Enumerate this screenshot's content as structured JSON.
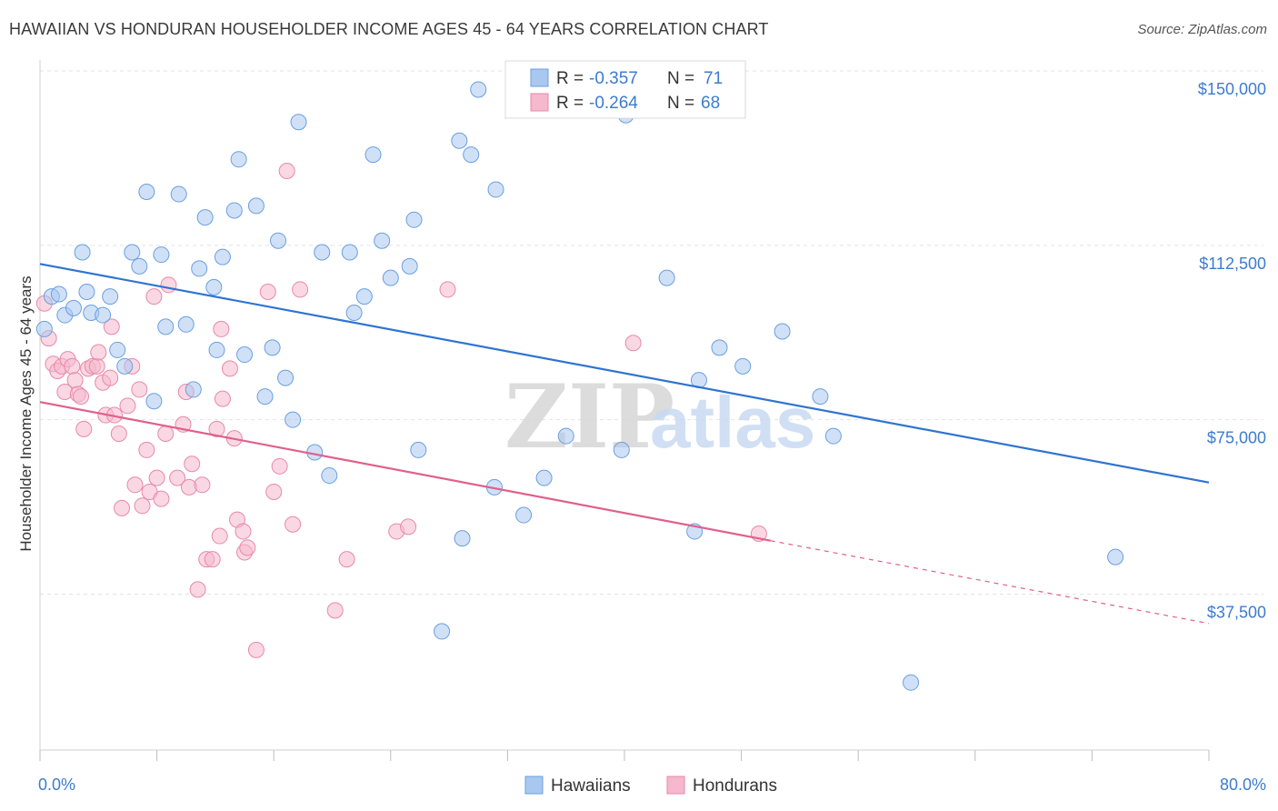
{
  "title": "HAWAIIAN VS HONDURAN HOUSEHOLDER INCOME AGES 45 - 64 YEARS CORRELATION CHART",
  "source": "Source: ZipAtlas.com",
  "watermark": "ZIPatlas",
  "legend_box": {
    "rows": [
      {
        "r_label": "R = ",
        "r_value": "-0.357",
        "n_label": "N = ",
        "n_value": "71",
        "color": "#a9c8f0"
      },
      {
        "r_label": "R = ",
        "r_value": "-0.264",
        "n_label": "N = ",
        "n_value": "68",
        "color": "#f5b8cc"
      }
    ]
  },
  "bottom_legend": [
    {
      "label": "Hawaiians",
      "color": "#a9c8f0"
    },
    {
      "label": "Hondurans",
      "color": "#f5b8cc"
    }
  ],
  "chart_data": {
    "type": "scatter",
    "title": "HAWAIIAN VS HONDURAN HOUSEHOLDER INCOME AGES 45 - 64 YEARS CORRELATION CHART",
    "xlabel": "",
    "ylabel": "Householder Income Ages 45 - 64 years",
    "xlim": [
      0,
      80
    ],
    "ylim": [
      12000,
      155000
    ],
    "x_tick_labels": [
      "0.0%",
      "80.0%"
    ],
    "y_ticks": [
      37500,
      75000,
      112500,
      150000
    ],
    "y_tick_labels": [
      "$37,500",
      "$75,000",
      "$112,500",
      "$150,000"
    ],
    "grid": true,
    "legend_position": "top-center",
    "series": [
      {
        "name": "Hawaiians",
        "color": "#a9c8f0",
        "edge": "#6a9fe0",
        "trend": {
          "x": [
            0,
            80
          ],
          "y": [
            108500,
            61500
          ],
          "color": "#2f74d0"
        },
        "points": [
          [
            0.3,
            94500
          ],
          [
            0.8,
            101500
          ],
          [
            1.3,
            102000
          ],
          [
            1.7,
            97500
          ],
          [
            2.3,
            99000
          ],
          [
            2.9,
            111000
          ],
          [
            3.2,
            102500
          ],
          [
            3.5,
            98000
          ],
          [
            4.3,
            97500
          ],
          [
            4.8,
            101500
          ],
          [
            5.3,
            90000
          ],
          [
            5.8,
            86500
          ],
          [
            6.3,
            111000
          ],
          [
            6.8,
            108000
          ],
          [
            7.3,
            124000
          ],
          [
            7.8,
            79000
          ],
          [
            8.3,
            110500
          ],
          [
            8.6,
            95000
          ],
          [
            9.5,
            123500
          ],
          [
            10.0,
            95500
          ],
          [
            10.5,
            81500
          ],
          [
            10.9,
            107500
          ],
          [
            11.3,
            118500
          ],
          [
            11.9,
            103500
          ],
          [
            12.1,
            90000
          ],
          [
            12.5,
            110000
          ],
          [
            13.3,
            120000
          ],
          [
            13.6,
            131000
          ],
          [
            14.0,
            89000
          ],
          [
            14.8,
            121000
          ],
          [
            15.4,
            80000
          ],
          [
            15.9,
            90500
          ],
          [
            16.3,
            113500
          ],
          [
            16.8,
            84000
          ],
          [
            17.3,
            75000
          ],
          [
            17.7,
            139000
          ],
          [
            18.8,
            68000
          ],
          [
            19.3,
            111000
          ],
          [
            19.8,
            63000
          ],
          [
            21.2,
            111000
          ],
          [
            21.5,
            98000
          ],
          [
            22.2,
            101500
          ],
          [
            22.8,
            132000
          ],
          [
            23.4,
            113500
          ],
          [
            24.0,
            105500
          ],
          [
            25.3,
            108000
          ],
          [
            25.6,
            118000
          ],
          [
            25.9,
            68500
          ],
          [
            27.5,
            29500
          ],
          [
            28.7,
            135000
          ],
          [
            28.9,
            49500
          ],
          [
            29.5,
            132000
          ],
          [
            30.0,
            146000
          ],
          [
            31.1,
            60500
          ],
          [
            31.2,
            124500
          ],
          [
            33.1,
            54500
          ],
          [
            34.5,
            62500
          ],
          [
            36.0,
            71500
          ],
          [
            39.8,
            68500
          ],
          [
            40.1,
            140500
          ],
          [
            42.9,
            105500
          ],
          [
            44.8,
            51000
          ],
          [
            45.1,
            83500
          ],
          [
            46.5,
            90500
          ],
          [
            48.1,
            86500
          ],
          [
            50.8,
            94000
          ],
          [
            53.4,
            80000
          ],
          [
            54.3,
            71500
          ],
          [
            59.6,
            18500
          ],
          [
            73.6,
            45500
          ],
          [
            33.6,
            149500
          ]
        ]
      },
      {
        "name": "Hondurans",
        "color": "#f5b8cc",
        "edge": "#e889a8",
        "trend": {
          "x": [
            0,
            50
          ],
          "y": [
            78800,
            49000
          ],
          "color": "#e0608c",
          "dashed_to": [
            80,
            31200
          ]
        },
        "points": [
          [
            0.3,
            100000
          ],
          [
            0.6,
            92500
          ],
          [
            0.9,
            87000
          ],
          [
            1.2,
            85500
          ],
          [
            1.5,
            86500
          ],
          [
            1.7,
            81000
          ],
          [
            1.9,
            88000
          ],
          [
            2.2,
            86500
          ],
          [
            2.4,
            83500
          ],
          [
            2.6,
            80500
          ],
          [
            2.8,
            80000
          ],
          [
            3.0,
            73000
          ],
          [
            3.3,
            86000
          ],
          [
            3.6,
            86500
          ],
          [
            3.9,
            86500
          ],
          [
            4.0,
            89500
          ],
          [
            4.3,
            83000
          ],
          [
            4.5,
            76000
          ],
          [
            4.8,
            84000
          ],
          [
            5.1,
            76000
          ],
          [
            5.4,
            72000
          ],
          [
            5.6,
            56000
          ],
          [
            6.0,
            78000
          ],
          [
            6.3,
            86500
          ],
          [
            6.5,
            61000
          ],
          [
            6.8,
            81500
          ],
          [
            7.0,
            56500
          ],
          [
            7.3,
            68500
          ],
          [
            7.5,
            59500
          ],
          [
            7.8,
            101500
          ],
          [
            8.0,
            62500
          ],
          [
            8.3,
            58000
          ],
          [
            8.6,
            72000
          ],
          [
            8.8,
            104000
          ],
          [
            9.4,
            62500
          ],
          [
            9.8,
            74000
          ],
          [
            10.0,
            81000
          ],
          [
            10.2,
            60500
          ],
          [
            10.4,
            65500
          ],
          [
            10.8,
            38500
          ],
          [
            11.1,
            61000
          ],
          [
            11.4,
            45000
          ],
          [
            11.8,
            45000
          ],
          [
            12.1,
            73000
          ],
          [
            12.3,
            50000
          ],
          [
            12.4,
            94500
          ],
          [
            12.5,
            79500
          ],
          [
            13.0,
            86000
          ],
          [
            13.3,
            71000
          ],
          [
            13.5,
            53500
          ],
          [
            13.9,
            51000
          ],
          [
            14.0,
            46500
          ],
          [
            14.2,
            47500
          ],
          [
            14.8,
            25500
          ],
          [
            15.6,
            102500
          ],
          [
            16.0,
            59500
          ],
          [
            16.4,
            65000
          ],
          [
            16.9,
            128500
          ],
          [
            17.3,
            52500
          ],
          [
            17.8,
            103000
          ],
          [
            20.2,
            34000
          ],
          [
            21.0,
            45000
          ],
          [
            24.4,
            51000
          ],
          [
            25.2,
            52000
          ],
          [
            27.9,
            103000
          ],
          [
            40.6,
            91500
          ],
          [
            49.2,
            50500
          ],
          [
            4.9,
            95000
          ]
        ]
      }
    ]
  }
}
